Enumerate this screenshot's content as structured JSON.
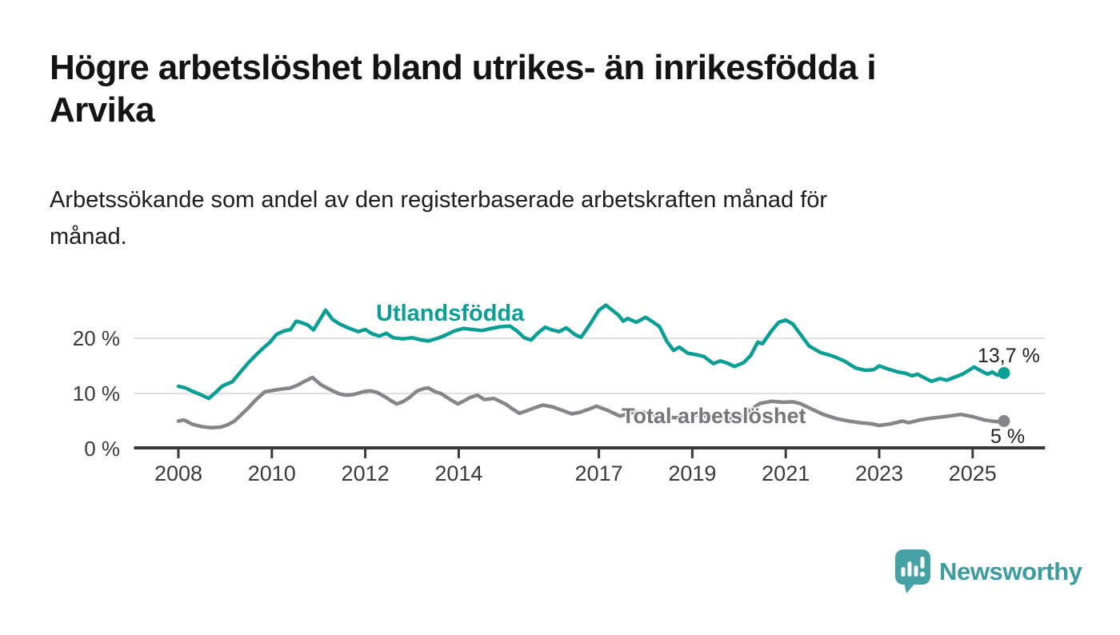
{
  "header": {
    "title_line1": "Högre arbetslöshet bland utrikes- än inrikesfödda i",
    "title_line2": "Arvika",
    "subtitle_line1": "Arbetssökande som andel av den registerbaserade arbetskraften månad för",
    "subtitle_line2": "månad."
  },
  "footer": {
    "brand": "Newsworthy"
  },
  "colors": {
    "teal": "#0B9E94",
    "gray": "#85858A",
    "grid": "#E1E1E1",
    "axis": "#3A3A3A",
    "tick_text": "#3A3A3A",
    "logo_teal": "#46A1A4"
  },
  "chart_data": {
    "type": "line",
    "title": "Högre arbetslöshet bland utrikes- än inrikesfödda i Arvika",
    "subtitle": "Arbetssökande som andel av den registerbaserade arbetskraften månad för månad.",
    "unit": "%",
    "grid": "horizontal-only",
    "legend_position": "inline-labels",
    "xlim": [
      2007.05,
      2026.55
    ],
    "ylim": [
      0,
      27.5
    ],
    "y_ticks": [
      {
        "label": "0 %",
        "value": 0
      },
      {
        "label": "10 %",
        "value": 10
      },
      {
        "label": "20 %",
        "value": 20
      }
    ],
    "x_ticks": [
      {
        "label": "2008",
        "year": 2008
      },
      {
        "label": "2010",
        "year": 2010
      },
      {
        "label": "2012",
        "year": 2012
      },
      {
        "label": "2014",
        "year": 2014
      },
      {
        "label": "2017",
        "year": 2017
      },
      {
        "label": "2019",
        "year": 2019
      },
      {
        "label": "2021",
        "year": 2021
      },
      {
        "label": "2023",
        "year": 2023
      },
      {
        "label": "2025",
        "year": 2025
      }
    ],
    "series": [
      {
        "name": "Utlandsfödda",
        "id": "utlandsfodda",
        "color": "#0B9E94",
        "end_label": "13,7 %",
        "end_value": 13.7,
        "points": [
          [
            2008.0,
            11.3
          ],
          [
            2008.15,
            11.0
          ],
          [
            2008.3,
            10.4
          ],
          [
            2008.5,
            9.7
          ],
          [
            2008.65,
            9.1
          ],
          [
            2008.8,
            10.2
          ],
          [
            2008.92,
            11.2
          ],
          [
            2009.0,
            11.6
          ],
          [
            2009.15,
            12.1
          ],
          [
            2009.3,
            13.6
          ],
          [
            2009.5,
            15.6
          ],
          [
            2009.65,
            16.9
          ],
          [
            2009.8,
            18.1
          ],
          [
            2009.95,
            19.2
          ],
          [
            2010.1,
            20.7
          ],
          [
            2010.25,
            21.3
          ],
          [
            2010.4,
            21.6
          ],
          [
            2010.52,
            23.1
          ],
          [
            2010.65,
            22.8
          ],
          [
            2010.77,
            22.4
          ],
          [
            2010.89,
            21.5
          ],
          [
            2011.0,
            23.0
          ],
          [
            2011.15,
            25.1
          ],
          [
            2011.3,
            23.4
          ],
          [
            2011.45,
            22.6
          ],
          [
            2011.63,
            21.9
          ],
          [
            2011.85,
            21.2
          ],
          [
            2012.0,
            21.6
          ],
          [
            2012.15,
            20.8
          ],
          [
            2012.3,
            20.4
          ],
          [
            2012.45,
            20.9
          ],
          [
            2012.6,
            20.1
          ],
          [
            2012.8,
            19.9
          ],
          [
            2013.0,
            20.1
          ],
          [
            2013.2,
            19.7
          ],
          [
            2013.35,
            19.5
          ],
          [
            2013.55,
            20.0
          ],
          [
            2013.7,
            20.5
          ],
          [
            2013.9,
            21.3
          ],
          [
            2014.1,
            21.8
          ],
          [
            2014.3,
            21.6
          ],
          [
            2014.5,
            21.4
          ],
          [
            2014.7,
            21.8
          ],
          [
            2014.9,
            22.1
          ],
          [
            2015.1,
            22.2
          ],
          [
            2015.25,
            21.3
          ],
          [
            2015.4,
            20.1
          ],
          [
            2015.55,
            19.7
          ],
          [
            2015.7,
            21.0
          ],
          [
            2015.85,
            22.0
          ],
          [
            2016.0,
            21.5
          ],
          [
            2016.15,
            21.2
          ],
          [
            2016.3,
            21.9
          ],
          [
            2016.5,
            20.6
          ],
          [
            2016.62,
            20.2
          ],
          [
            2016.8,
            22.4
          ],
          [
            2017.0,
            25.1
          ],
          [
            2017.15,
            26.0
          ],
          [
            2017.3,
            25.0
          ],
          [
            2017.42,
            24.2
          ],
          [
            2017.52,
            23.1
          ],
          [
            2017.62,
            23.6
          ],
          [
            2017.8,
            22.9
          ],
          [
            2018.0,
            23.8
          ],
          [
            2018.15,
            23.0
          ],
          [
            2018.3,
            22.1
          ],
          [
            2018.45,
            19.5
          ],
          [
            2018.6,
            17.8
          ],
          [
            2018.72,
            18.4
          ],
          [
            2018.9,
            17.3
          ],
          [
            2019.1,
            17.0
          ],
          [
            2019.25,
            16.7
          ],
          [
            2019.45,
            15.4
          ],
          [
            2019.6,
            15.9
          ],
          [
            2019.75,
            15.5
          ],
          [
            2019.9,
            14.9
          ],
          [
            2020.1,
            15.6
          ],
          [
            2020.25,
            16.9
          ],
          [
            2020.4,
            19.3
          ],
          [
            2020.5,
            19.0
          ],
          [
            2020.7,
            21.4
          ],
          [
            2020.85,
            22.9
          ],
          [
            2021.0,
            23.3
          ],
          [
            2021.15,
            22.6
          ],
          [
            2021.3,
            20.9
          ],
          [
            2021.5,
            18.6
          ],
          [
            2021.75,
            17.4
          ],
          [
            2022.0,
            16.8
          ],
          [
            2022.25,
            15.9
          ],
          [
            2022.5,
            14.6
          ],
          [
            2022.7,
            14.2
          ],
          [
            2022.88,
            14.3
          ],
          [
            2023.0,
            15.0
          ],
          [
            2023.2,
            14.4
          ],
          [
            2023.4,
            13.9
          ],
          [
            2023.55,
            13.7
          ],
          [
            2023.7,
            13.2
          ],
          [
            2023.82,
            13.5
          ],
          [
            2023.95,
            12.9
          ],
          [
            2024.12,
            12.2
          ],
          [
            2024.3,
            12.7
          ],
          [
            2024.45,
            12.4
          ],
          [
            2024.6,
            12.9
          ],
          [
            2024.78,
            13.5
          ],
          [
            2024.92,
            14.2
          ],
          [
            2025.03,
            14.8
          ],
          [
            2025.2,
            14.0
          ],
          [
            2025.32,
            13.5
          ],
          [
            2025.42,
            13.9
          ],
          [
            2025.53,
            13.3
          ],
          [
            2025.67,
            13.7
          ]
        ]
      },
      {
        "name": "Total arbetslöshet",
        "id": "total-arbetsloshet",
        "color": "#85858A",
        "end_label": "5 %",
        "end_value": 5,
        "points": [
          [
            2008.0,
            5.0
          ],
          [
            2008.12,
            5.2
          ],
          [
            2008.3,
            4.4
          ],
          [
            2008.5,
            4.0
          ],
          [
            2008.7,
            3.8
          ],
          [
            2008.9,
            3.9
          ],
          [
            2009.05,
            4.3
          ],
          [
            2009.2,
            5.0
          ],
          [
            2009.35,
            6.2
          ],
          [
            2009.5,
            7.4
          ],
          [
            2009.65,
            8.8
          ],
          [
            2009.85,
            10.3
          ],
          [
            2010.05,
            10.6
          ],
          [
            2010.2,
            10.8
          ],
          [
            2010.4,
            11.0
          ],
          [
            2010.55,
            11.5
          ],
          [
            2010.7,
            12.2
          ],
          [
            2010.87,
            12.9
          ],
          [
            2011.05,
            11.6
          ],
          [
            2011.25,
            10.7
          ],
          [
            2011.45,
            9.9
          ],
          [
            2011.6,
            9.7
          ],
          [
            2011.75,
            9.8
          ],
          [
            2011.95,
            10.3
          ],
          [
            2012.1,
            10.5
          ],
          [
            2012.25,
            10.2
          ],
          [
            2012.4,
            9.5
          ],
          [
            2012.55,
            8.7
          ],
          [
            2012.67,
            8.1
          ],
          [
            2012.8,
            8.5
          ],
          [
            2012.95,
            9.3
          ],
          [
            2013.1,
            10.4
          ],
          [
            2013.25,
            10.9
          ],
          [
            2013.35,
            11.0
          ],
          [
            2013.5,
            10.3
          ],
          [
            2013.62,
            10.0
          ],
          [
            2013.8,
            9.0
          ],
          [
            2013.98,
            8.1
          ],
          [
            2014.1,
            8.6
          ],
          [
            2014.25,
            9.3
          ],
          [
            2014.4,
            9.7
          ],
          [
            2014.55,
            8.9
          ],
          [
            2014.75,
            9.1
          ],
          [
            2015.0,
            8.1
          ],
          [
            2015.15,
            7.2
          ],
          [
            2015.3,
            6.4
          ],
          [
            2015.5,
            7.0
          ],
          [
            2015.65,
            7.5
          ],
          [
            2015.8,
            7.9
          ],
          [
            2016.0,
            7.6
          ],
          [
            2016.2,
            7.0
          ],
          [
            2016.42,
            6.3
          ],
          [
            2016.6,
            6.6
          ],
          [
            2016.8,
            7.2
          ],
          [
            2016.95,
            7.7
          ],
          [
            2017.2,
            6.9
          ],
          [
            2017.45,
            5.9
          ],
          [
            2017.7,
            6.5
          ],
          [
            2017.9,
            6.7
          ],
          [
            2018.1,
            6.3
          ],
          [
            2018.4,
            5.8
          ],
          [
            2018.65,
            5.6
          ],
          [
            2018.9,
            6.0
          ],
          [
            2019.15,
            6.2
          ],
          [
            2019.4,
            5.6
          ],
          [
            2019.7,
            5.3
          ],
          [
            2019.95,
            5.6
          ],
          [
            2020.2,
            6.8
          ],
          [
            2020.45,
            8.2
          ],
          [
            2020.7,
            8.6
          ],
          [
            2020.95,
            8.4
          ],
          [
            2021.15,
            8.5
          ],
          [
            2021.3,
            8.2
          ],
          [
            2021.55,
            7.2
          ],
          [
            2021.8,
            6.2
          ],
          [
            2022.1,
            5.4
          ],
          [
            2022.35,
            5.0
          ],
          [
            2022.6,
            4.7
          ],
          [
            2022.85,
            4.5
          ],
          [
            2023.0,
            4.2
          ],
          [
            2023.25,
            4.5
          ],
          [
            2023.5,
            5.0
          ],
          [
            2023.63,
            4.7
          ],
          [
            2023.87,
            5.2
          ],
          [
            2024.1,
            5.5
          ],
          [
            2024.4,
            5.8
          ],
          [
            2024.75,
            6.2
          ],
          [
            2025.0,
            5.8
          ],
          [
            2025.25,
            5.2
          ],
          [
            2025.5,
            4.9
          ],
          [
            2025.67,
            5.0
          ]
        ]
      }
    ]
  }
}
